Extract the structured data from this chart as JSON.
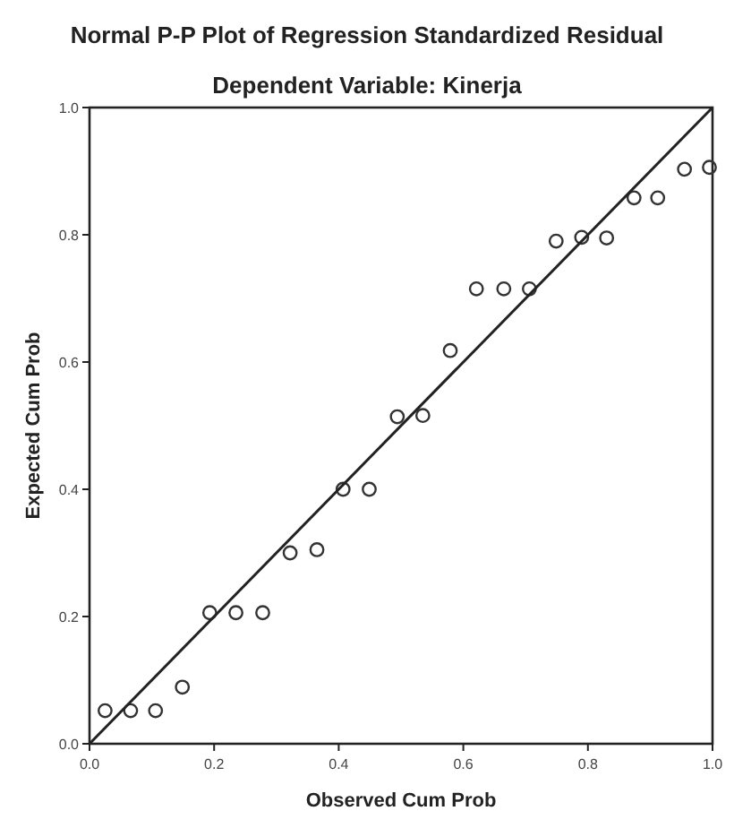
{
  "chart_data": {
    "type": "scatter",
    "title": "Normal P-P Plot of Regression Standardized Residual",
    "subtitle": "Dependent Variable: Kinerja",
    "xlabel": "Observed Cum Prob",
    "ylabel": "Expected Cum Prob",
    "xlim": [
      0,
      1
    ],
    "ylim": [
      0,
      1
    ],
    "xticks": [
      {
        "value": 0,
        "label": "0.0"
      },
      {
        "value": 0.2,
        "label": "0.2"
      },
      {
        "value": 0.4,
        "label": "0.4"
      },
      {
        "value": 0.6,
        "label": "0.6"
      },
      {
        "value": 0.8,
        "label": "0.8"
      },
      {
        "value": 1,
        "label": "1.0"
      }
    ],
    "yticks": [
      {
        "value": 0,
        "label": "0.0"
      },
      {
        "value": 0.2,
        "label": "0.2"
      },
      {
        "value": 0.4,
        "label": "0.4"
      },
      {
        "value": 0.6,
        "label": "0.6"
      },
      {
        "value": 0.8,
        "label": "0.8"
      },
      {
        "value": 1,
        "label": "1.0"
      }
    ],
    "grid": false,
    "series": [
      {
        "color": "#333333",
        "marker": "circle",
        "x": [
          0.025,
          0.066,
          0.106,
          0.149,
          0.193,
          0.235,
          0.278,
          0.322,
          0.365,
          0.407,
          0.449,
          0.494,
          0.535,
          0.579,
          0.621,
          0.665,
          0.706,
          0.749,
          0.79,
          0.83,
          0.874,
          0.912,
          0.955,
          0.995
        ],
        "values": [
          0.052,
          0.052,
          0.052,
          0.089,
          0.206,
          0.206,
          0.206,
          0.3,
          0.305,
          0.4,
          0.4,
          0.514,
          0.516,
          0.618,
          0.715,
          0.715,
          0.715,
          0.79,
          0.796,
          0.795,
          0.858,
          0.858,
          0.903,
          0.906
        ]
      },
      {
        "type": "line",
        "color": "#222222",
        "x": [
          0,
          1
        ],
        "values": [
          0,
          1
        ],
        "marker": "none",
        "line_style": "solid"
      }
    ]
  }
}
